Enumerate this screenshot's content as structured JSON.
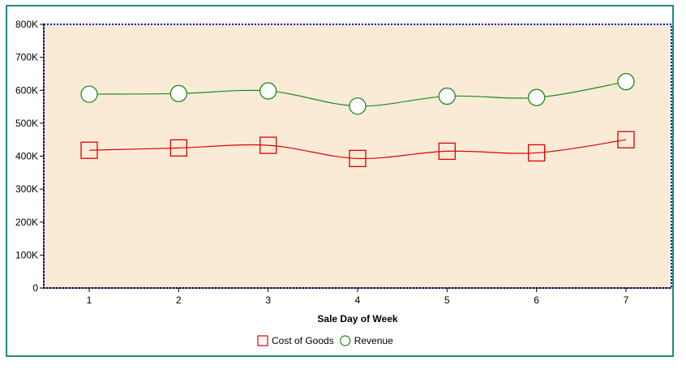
{
  "chart_data": {
    "type": "line",
    "title": "",
    "xlabel": "Sale Day of Week",
    "ylabel": "",
    "categories": [
      "1",
      "2",
      "3",
      "4",
      "5",
      "6",
      "7"
    ],
    "ylim": [
      0,
      800000
    ],
    "y_ticks": [
      0,
      100000,
      200000,
      300000,
      400000,
      500000,
      600000,
      700000,
      800000
    ],
    "y_tick_labels": [
      "0",
      "100K",
      "200K",
      "300K",
      "400K",
      "500K",
      "600K",
      "700K",
      "800K"
    ],
    "series": [
      {
        "name": "Cost of Goods",
        "marker": "square",
        "color": "#e00000",
        "values": [
          418000,
          425000,
          433000,
          393000,
          415000,
          410000,
          450000
        ]
      },
      {
        "name": "Revenue",
        "marker": "circle",
        "color": "#1e8a1e",
        "values": [
          588000,
          590000,
          598000,
          552000,
          582000,
          578000,
          626000
        ]
      }
    ],
    "plot_background": "#faebd7",
    "plot_border_color": "#0000cc",
    "grid": false,
    "legend_position": "bottom-center"
  },
  "colors": {
    "frame_border": "#1f8a80"
  }
}
